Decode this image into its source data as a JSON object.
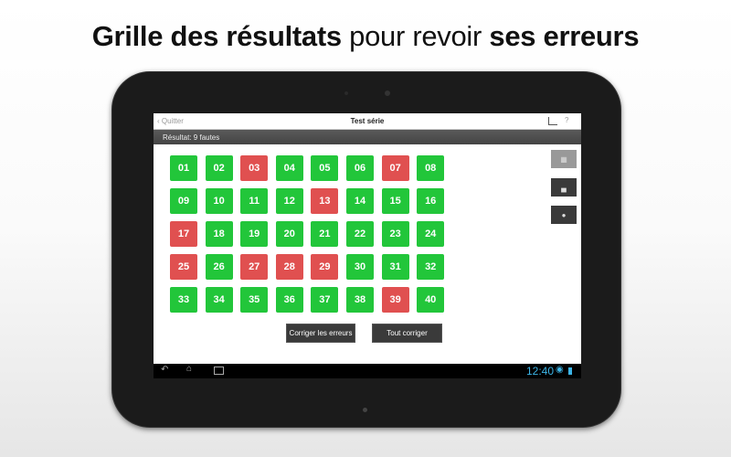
{
  "headline": {
    "part1": "Grille des résultats",
    "part2": "pour revoir",
    "part3": "ses erreurs"
  },
  "appbar": {
    "back_label": "Quitter",
    "title": "Test série",
    "help_label": "?"
  },
  "result_text": "Résultat: 9 fautes",
  "colors": {
    "correct": "#22c63a",
    "wrong": "#e05050"
  },
  "questions": [
    {
      "n": "01",
      "ok": true
    },
    {
      "n": "02",
      "ok": true
    },
    {
      "n": "03",
      "ok": false
    },
    {
      "n": "04",
      "ok": true
    },
    {
      "n": "05",
      "ok": true
    },
    {
      "n": "06",
      "ok": true
    },
    {
      "n": "07",
      "ok": false
    },
    {
      "n": "08",
      "ok": true
    },
    {
      "n": "09",
      "ok": true
    },
    {
      "n": "10",
      "ok": true
    },
    {
      "n": "11",
      "ok": true
    },
    {
      "n": "12",
      "ok": true
    },
    {
      "n": "13",
      "ok": false
    },
    {
      "n": "14",
      "ok": true
    },
    {
      "n": "15",
      "ok": true
    },
    {
      "n": "16",
      "ok": true
    },
    {
      "n": "17",
      "ok": false
    },
    {
      "n": "18",
      "ok": true
    },
    {
      "n": "19",
      "ok": true
    },
    {
      "n": "20",
      "ok": true
    },
    {
      "n": "21",
      "ok": true
    },
    {
      "n": "22",
      "ok": true
    },
    {
      "n": "23",
      "ok": true
    },
    {
      "n": "24",
      "ok": true
    },
    {
      "n": "25",
      "ok": false
    },
    {
      "n": "26",
      "ok": true
    },
    {
      "n": "27",
      "ok": false
    },
    {
      "n": "28",
      "ok": false
    },
    {
      "n": "29",
      "ok": false
    },
    {
      "n": "30",
      "ok": true
    },
    {
      "n": "31",
      "ok": true
    },
    {
      "n": "32",
      "ok": true
    },
    {
      "n": "33",
      "ok": true
    },
    {
      "n": "34",
      "ok": true
    },
    {
      "n": "35",
      "ok": true
    },
    {
      "n": "36",
      "ok": true
    },
    {
      "n": "37",
      "ok": true
    },
    {
      "n": "38",
      "ok": true
    },
    {
      "n": "39",
      "ok": false
    },
    {
      "n": "40",
      "ok": true
    }
  ],
  "buttons": {
    "fix_errors": "Corriger les erreurs",
    "fix_all": "Tout corriger"
  },
  "side_icons": [
    "grid-icon",
    "bar-chart-icon",
    "comment-icon"
  ],
  "status": {
    "time": "12:40"
  }
}
